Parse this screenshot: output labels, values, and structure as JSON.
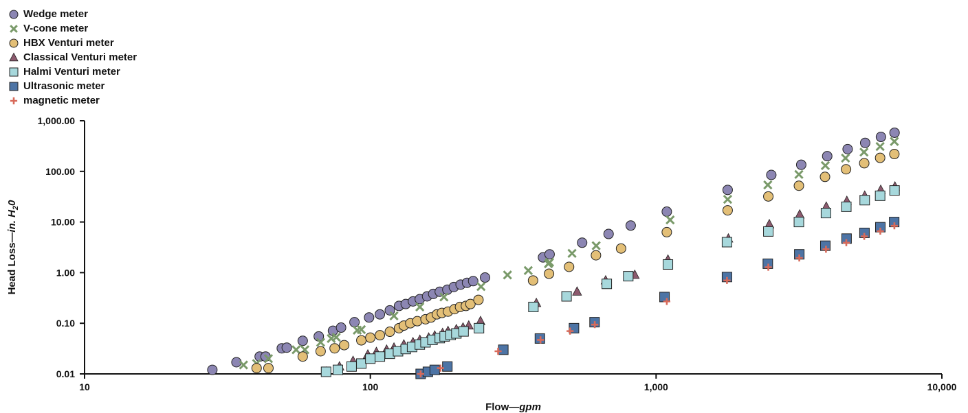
{
  "chart_data": {
    "type": "scatter",
    "xscale": "log",
    "yscale": "log",
    "xlim": [
      10,
      10000
    ],
    "ylim": [
      0.01,
      1000
    ],
    "xlabel_main": "Flow—",
    "xlabel_unit": "gpm",
    "ylabel_main": "Head Loss—",
    "ylabel_unit": "in. H",
    "ylabel_sub": "2",
    "ylabel_tail": "0",
    "xticks": [
      {
        "value": 10,
        "label": "10"
      },
      {
        "value": 100,
        "label": "100"
      },
      {
        "value": 1000,
        "label": "1,000"
      },
      {
        "value": 10000,
        "label": "10,000"
      }
    ],
    "yticks": [
      {
        "value": 0.01,
        "label": "0.01"
      },
      {
        "value": 0.1,
        "label": "0.10"
      },
      {
        "value": 1,
        "label": "1.00"
      },
      {
        "value": 10,
        "label": "10.00"
      },
      {
        "value": 100,
        "label": "100.00"
      },
      {
        "value": 1000,
        "label": "1,000.00"
      }
    ],
    "legend_position": "top-left",
    "grid": false,
    "series": [
      {
        "name": "Wedge meter",
        "marker": "circle",
        "color": "#8c86b3",
        "points": [
          [
            28,
            0.012
          ],
          [
            34,
            0.017
          ],
          [
            41,
            0.022
          ],
          [
            43,
            0.022
          ],
          [
            49,
            0.032
          ],
          [
            51,
            0.033
          ],
          [
            58,
            0.045
          ],
          [
            66,
            0.055
          ],
          [
            74,
            0.071
          ],
          [
            79,
            0.082
          ],
          [
            88,
            0.105
          ],
          [
            99,
            0.13
          ],
          [
            108,
            0.15
          ],
          [
            117,
            0.18
          ],
          [
            126,
            0.22
          ],
          [
            133,
            0.24
          ],
          [
            141,
            0.27
          ],
          [
            149,
            0.3
          ],
          [
            158,
            0.34
          ],
          [
            166,
            0.38
          ],
          [
            175,
            0.42
          ],
          [
            186,
            0.46
          ],
          [
            196,
            0.52
          ],
          [
            207,
            0.58
          ],
          [
            218,
            0.63
          ],
          [
            229,
            0.68
          ],
          [
            252,
            0.8
          ],
          [
            402,
            2.0
          ],
          [
            424,
            2.3
          ],
          [
            551,
            3.9
          ],
          [
            682,
            5.8
          ],
          [
            815,
            8.5
          ],
          [
            1090,
            16
          ],
          [
            1780,
            43
          ],
          [
            2530,
            85
          ],
          [
            3220,
            135
          ],
          [
            3970,
            200
          ],
          [
            4680,
            275
          ],
          [
            5390,
            365
          ],
          [
            6120,
            480
          ],
          [
            6830,
            580
          ]
        ]
      },
      {
        "name": "V-cone meter",
        "marker": "x",
        "color": "#7a9a6a",
        "points": [
          [
            36,
            0.015
          ],
          [
            40,
            0.016
          ],
          [
            44,
            0.02
          ],
          [
            55,
            0.03
          ],
          [
            59,
            0.03
          ],
          [
            67,
            0.042
          ],
          [
            73,
            0.05
          ],
          [
            76,
            0.053
          ],
          [
            90,
            0.073
          ],
          [
            93,
            0.075
          ],
          [
            121,
            0.14
          ],
          [
            149,
            0.21
          ],
          [
            181,
            0.33
          ],
          [
            244,
            0.53
          ],
          [
            302,
            0.9
          ],
          [
            357,
            1.1
          ],
          [
            420,
            1.5
          ],
          [
            424,
            1.6
          ],
          [
            508,
            2.4
          ],
          [
            617,
            3.4
          ],
          [
            1120,
            11
          ],
          [
            1780,
            28
          ],
          [
            2460,
            54
          ],
          [
            3160,
            87
          ],
          [
            3910,
            130
          ],
          [
            4600,
            183
          ],
          [
            5340,
            240
          ],
          [
            6080,
            310
          ],
          [
            6820,
            390
          ]
        ]
      },
      {
        "name": "HBX Venturi meter",
        "marker": "circle",
        "color": "#e3bf77",
        "points": [
          [
            40,
            0.013
          ],
          [
            44,
            0.013
          ],
          [
            58,
            0.022
          ],
          [
            67,
            0.028
          ],
          [
            75,
            0.032
          ],
          [
            81,
            0.037
          ],
          [
            93,
            0.046
          ],
          [
            100,
            0.052
          ],
          [
            108,
            0.058
          ],
          [
            117,
            0.068
          ],
          [
            126,
            0.08
          ],
          [
            131,
            0.09
          ],
          [
            138,
            0.1
          ],
          [
            146,
            0.11
          ],
          [
            156,
            0.12
          ],
          [
            163,
            0.13
          ],
          [
            171,
            0.15
          ],
          [
            178,
            0.16
          ],
          [
            187,
            0.17
          ],
          [
            197,
            0.19
          ],
          [
            206,
            0.21
          ],
          [
            216,
            0.22
          ],
          [
            224,
            0.24
          ],
          [
            239,
            0.29
          ],
          [
            371,
            0.7
          ],
          [
            422,
            0.95
          ],
          [
            496,
            1.3
          ],
          [
            616,
            2.2
          ],
          [
            754,
            3.0
          ],
          [
            1090,
            6.3
          ],
          [
            1780,
            17
          ],
          [
            2470,
            32
          ],
          [
            3160,
            52
          ],
          [
            3900,
            78
          ],
          [
            4620,
            110
          ],
          [
            5350,
            145
          ],
          [
            6080,
            185
          ],
          [
            6820,
            220
          ]
        ]
      },
      {
        "name": "Classical Venturi meter",
        "marker": "triangle",
        "color": "#8c5a6e",
        "points": [
          [
            70,
            0.011
          ],
          [
            78,
            0.014
          ],
          [
            87,
            0.018
          ],
          [
            98,
            0.024
          ],
          [
            105,
            0.027
          ],
          [
            114,
            0.03
          ],
          [
            121,
            0.033
          ],
          [
            131,
            0.038
          ],
          [
            141,
            0.042
          ],
          [
            149,
            0.047
          ],
          [
            160,
            0.052
          ],
          [
            168,
            0.057
          ],
          [
            179,
            0.064
          ],
          [
            187,
            0.07
          ],
          [
            200,
            0.076
          ],
          [
            211,
            0.082
          ],
          [
            221,
            0.09
          ],
          [
            243,
            0.11
          ],
          [
            381,
            0.25
          ],
          [
            529,
            0.42
          ],
          [
            666,
            0.7
          ],
          [
            842,
            0.9
          ],
          [
            1100,
            1.8
          ],
          [
            1790,
            4.7
          ],
          [
            2490,
            9.0
          ],
          [
            3180,
            14
          ],
          [
            3940,
            20
          ],
          [
            4650,
            26
          ],
          [
            5370,
            33
          ],
          [
            6110,
            43
          ],
          [
            6850,
            50
          ]
        ]
      },
      {
        "name": "Halmi Venturi meter",
        "marker": "square",
        "color": "#a7d8dc",
        "points": [
          [
            70,
            0.011
          ],
          [
            77,
            0.012
          ],
          [
            86,
            0.014
          ],
          [
            93,
            0.016
          ],
          [
            100,
            0.02
          ],
          [
            108,
            0.022
          ],
          [
            117,
            0.025
          ],
          [
            125,
            0.028
          ],
          [
            133,
            0.031
          ],
          [
            140,
            0.034
          ],
          [
            149,
            0.038
          ],
          [
            156,
            0.042
          ],
          [
            165,
            0.047
          ],
          [
            175,
            0.051
          ],
          [
            182,
            0.055
          ],
          [
            191,
            0.059
          ],
          [
            200,
            0.063
          ],
          [
            212,
            0.069
          ],
          [
            240,
            0.08
          ],
          [
            372,
            0.21
          ],
          [
            486,
            0.34
          ],
          [
            672,
            0.6
          ],
          [
            799,
            0.85
          ],
          [
            1100,
            1.45
          ],
          [
            1770,
            4.0
          ],
          [
            2470,
            6.5
          ],
          [
            3160,
            10
          ],
          [
            3930,
            15
          ],
          [
            4630,
            20
          ],
          [
            5370,
            27
          ],
          [
            6080,
            33
          ],
          [
            6830,
            42
          ]
        ]
      },
      {
        "name": "Ultrasonic meter",
        "marker": "square",
        "color": "#4d74a5",
        "points": [
          [
            150,
            0.01
          ],
          [
            159,
            0.011
          ],
          [
            168,
            0.012
          ],
          [
            186,
            0.014
          ],
          [
            292,
            0.03
          ],
          [
            392,
            0.05
          ],
          [
            516,
            0.08
          ],
          [
            609,
            0.105
          ],
          [
            1070,
            0.33
          ],
          [
            1770,
            0.82
          ],
          [
            2460,
            1.5
          ],
          [
            3170,
            2.3
          ],
          [
            3910,
            3.4
          ],
          [
            4640,
            4.7
          ],
          [
            5360,
            6.1
          ],
          [
            6090,
            7.9
          ],
          [
            6810,
            10
          ]
        ]
      },
      {
        "name": "magnetic meter",
        "marker": "plus",
        "color": "#d86a5a",
        "points": [
          [
            150,
            0.01
          ],
          [
            176,
            0.013
          ],
          [
            280,
            0.028
          ],
          [
            394,
            0.047
          ],
          [
            500,
            0.07
          ],
          [
            610,
            0.094
          ],
          [
            1090,
            0.27
          ],
          [
            1770,
            0.7
          ],
          [
            2470,
            1.28
          ],
          [
            3170,
            1.95
          ],
          [
            3930,
            2.9
          ],
          [
            4630,
            3.9
          ],
          [
            5350,
            5.2
          ],
          [
            6090,
            6.6
          ],
          [
            6820,
            8.4
          ]
        ]
      }
    ]
  }
}
